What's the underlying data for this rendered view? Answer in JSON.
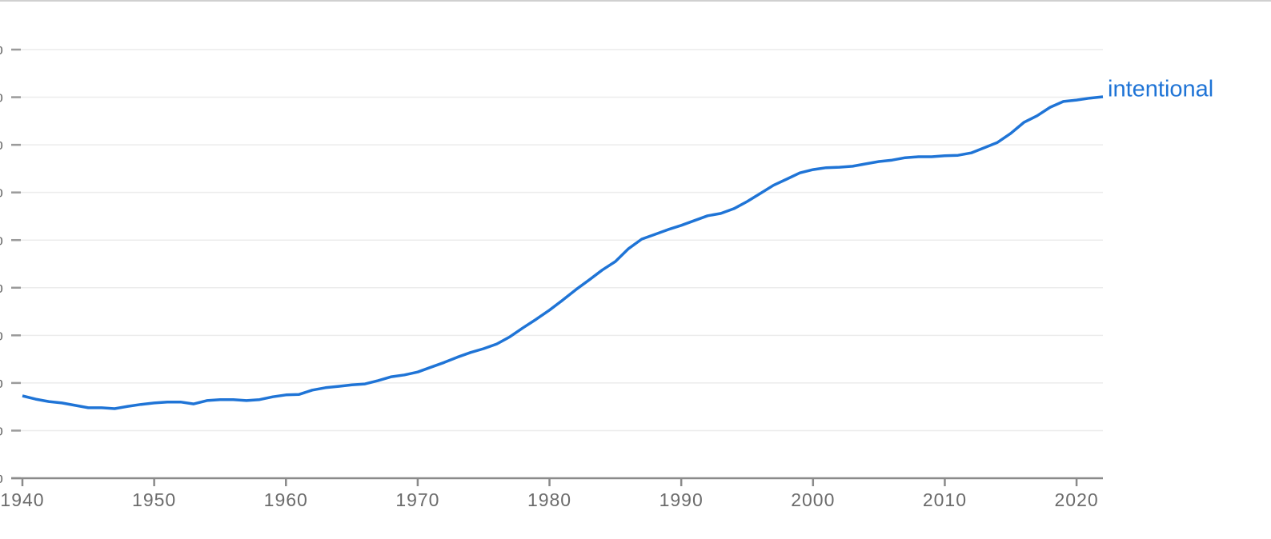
{
  "chart_data": {
    "type": "line",
    "x": [
      1940,
      1941,
      1942,
      1943,
      1944,
      1945,
      1946,
      1947,
      1948,
      1949,
      1950,
      1951,
      1952,
      1953,
      1954,
      1955,
      1956,
      1957,
      1958,
      1959,
      1960,
      1961,
      1962,
      1963,
      1964,
      1965,
      1966,
      1967,
      1968,
      1969,
      1970,
      1971,
      1972,
      1973,
      1974,
      1975,
      1976,
      1977,
      1978,
      1979,
      1980,
      1981,
      1982,
      1983,
      1984,
      1985,
      1986,
      1987,
      1988,
      1989,
      1990,
      1991,
      1992,
      1993,
      1994,
      1995,
      1996,
      1997,
      1998,
      1999,
      2000,
      2001,
      2002,
      2003,
      2004,
      2005,
      2006,
      2007,
      2008,
      2009,
      2010,
      2011,
      2012,
      2013,
      2014,
      2015,
      2016,
      2017,
      2018,
      2019,
      2020,
      2021,
      2022
    ],
    "series": [
      {
        "name": "intentional",
        "color": "#1f74d6",
        "values": [
          1.73,
          1.66,
          1.61,
          1.58,
          1.53,
          1.48,
          1.48,
          1.46,
          1.51,
          1.55,
          1.58,
          1.6,
          1.6,
          1.56,
          1.63,
          1.65,
          1.65,
          1.63,
          1.65,
          1.71,
          1.75,
          1.76,
          1.85,
          1.9,
          1.93,
          1.96,
          1.98,
          2.05,
          2.13,
          2.17,
          2.23,
          2.33,
          2.43,
          2.54,
          2.64,
          2.72,
          2.82,
          2.97,
          3.16,
          3.34,
          3.53,
          3.74,
          3.96,
          4.16,
          4.37,
          4.55,
          4.82,
          5.02,
          5.12,
          5.22,
          5.31,
          5.41,
          5.51,
          5.56,
          5.66,
          5.81,
          5.98,
          6.15,
          6.28,
          6.41,
          6.48,
          6.52,
          6.53,
          6.55,
          6.6,
          6.65,
          6.68,
          6.73,
          6.75,
          6.75,
          6.77,
          6.78,
          6.83,
          6.94,
          7.05,
          7.24,
          7.47,
          7.61,
          7.79,
          7.91,
          7.94,
          7.98,
          8.01
        ]
      }
    ],
    "xlim": [
      1940,
      2022
    ],
    "xticks": [
      1940,
      1950,
      1960,
      1970,
      1980,
      1990,
      2000,
      2010,
      2020
    ],
    "ylim": [
      0,
      9
    ],
    "yticks": [
      {
        "value": 0,
        "label": "%"
      },
      {
        "value": 1,
        "label": "%"
      },
      {
        "value": 2,
        "label": "%"
      },
      {
        "value": 3,
        "label": "%"
      },
      {
        "value": 4,
        "label": "%"
      },
      {
        "value": 5,
        "label": "%"
      },
      {
        "value": 6,
        "label": "%"
      },
      {
        "value": 7,
        "label": "%"
      },
      {
        "value": 8,
        "label": "%"
      },
      {
        "value": 9,
        "label": "%"
      }
    ],
    "grid": true
  }
}
